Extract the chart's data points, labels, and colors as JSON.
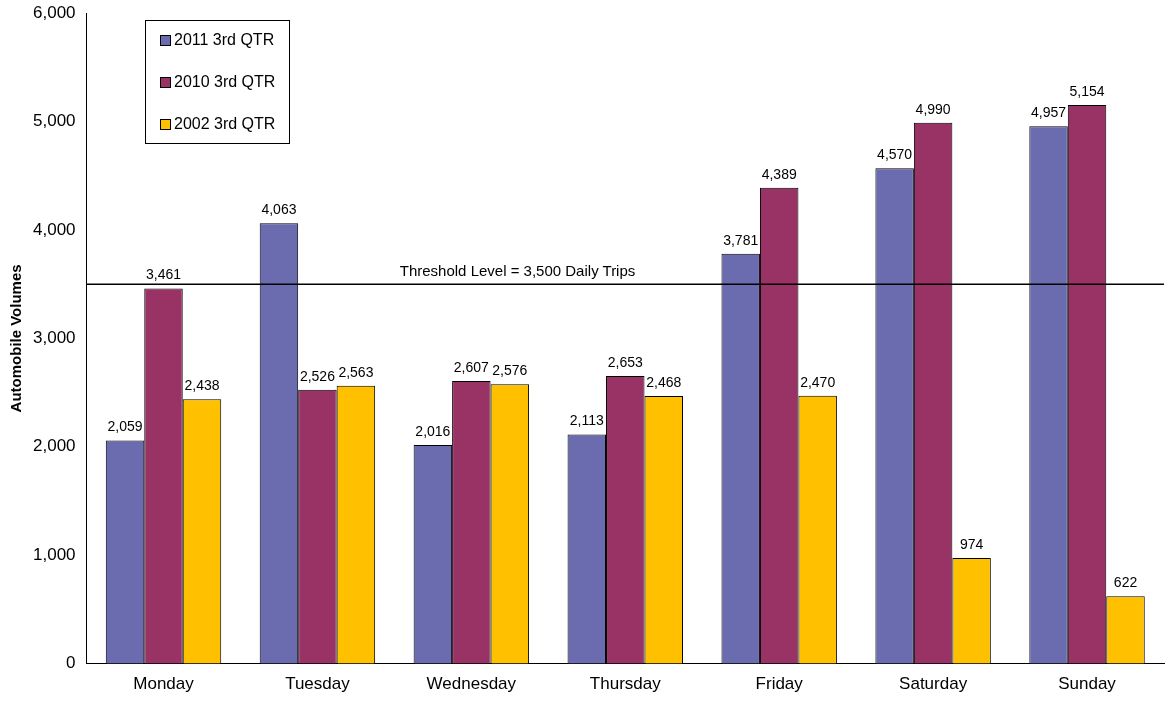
{
  "chart_data": {
    "type": "bar",
    "ylabel": "Automobile Volumes",
    "categories": [
      "Monday",
      "Tuesday",
      "Wednesday",
      "Thursday",
      "Friday",
      "Saturday",
      "Sunday"
    ],
    "series": [
      {
        "name": "2011 3rd QTR",
        "color": "#6b6bb0",
        "values": [
          2059,
          4063,
          2016,
          2113,
          3781,
          4570,
          4957
        ],
        "value_labels": [
          "2,059",
          "4,063",
          "2,016",
          "2,113",
          "3,781",
          "4,570",
          "4,957"
        ]
      },
      {
        "name": "2010 3rd QTR",
        "color": "#993366",
        "values": [
          3461,
          2526,
          2607,
          2653,
          4389,
          4990,
          5154
        ],
        "value_labels": [
          "3,461",
          "2,526",
          "2,607",
          "2,653",
          "4,389",
          "4,990",
          "5,154"
        ]
      },
      {
        "name": "2002 3rd QTR",
        "color": "#ffc000",
        "values": [
          2438,
          2563,
          2576,
          2468,
          2470,
          974,
          622
        ],
        "value_labels": [
          "2,438",
          "2,563",
          "2,576",
          "2,468",
          "2,470",
          "974",
          "622"
        ]
      }
    ],
    "ylim": [
      0,
      6000
    ],
    "yticks": [
      {
        "value": 0,
        "label": "0"
      },
      {
        "value": 1000,
        "label": "1,000"
      },
      {
        "value": 2000,
        "label": "2,000"
      },
      {
        "value": 3000,
        "label": "3,000"
      },
      {
        "value": 4000,
        "label": "4,000"
      },
      {
        "value": 5000,
        "label": "5,000"
      },
      {
        "value": 6000,
        "label": "6,000"
      }
    ],
    "ref_lines": [
      {
        "axis": "y",
        "value": 3500,
        "label": "Threshold Level = 3,500 Daily Trips",
        "color": "#000000"
      }
    ],
    "grid": false,
    "legend": "top left"
  }
}
